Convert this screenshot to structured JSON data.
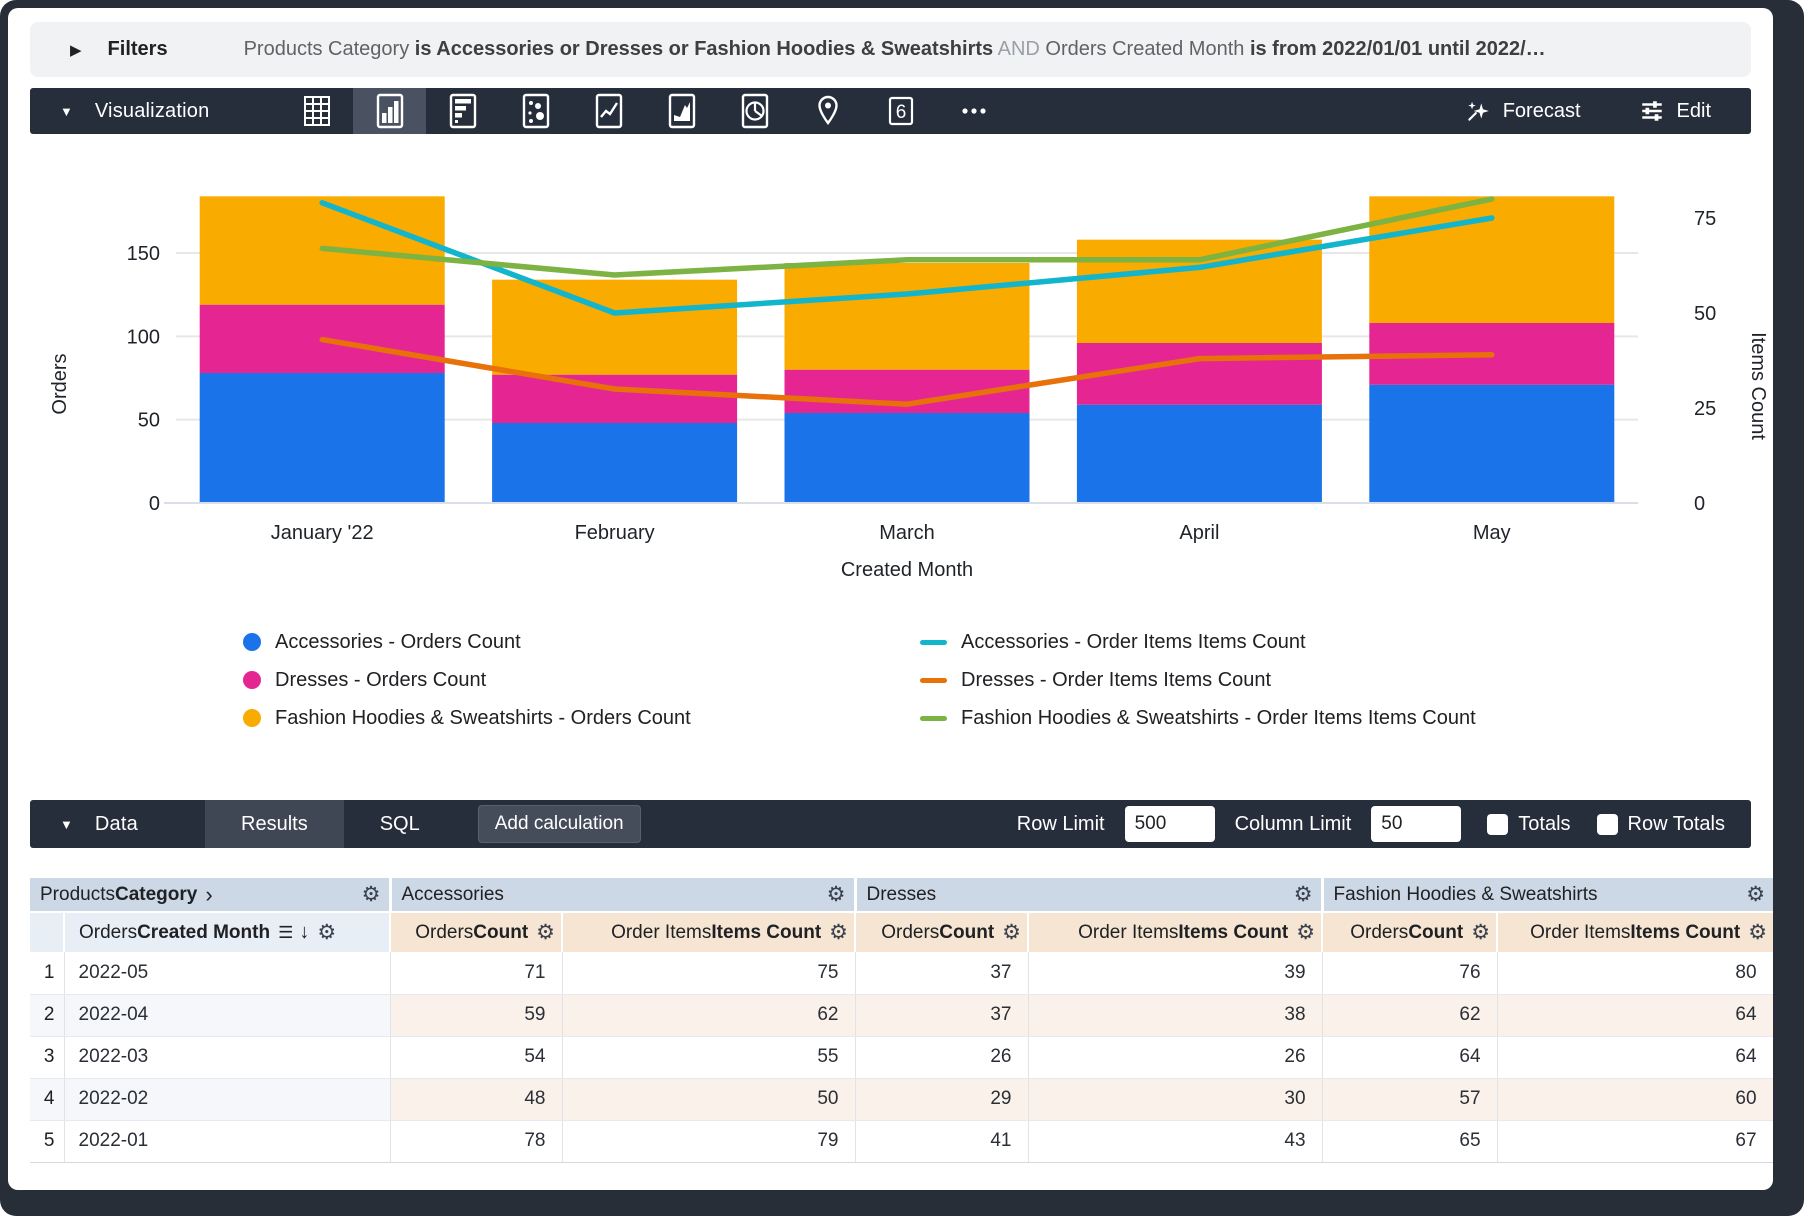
{
  "filters": {
    "label": "Filters",
    "expand_icon": "▶",
    "parts": [
      {
        "text": "Products Category ",
        "style": "normal"
      },
      {
        "text": "is Accessories or Dresses or Fashion Hoodies & Sweatshirts",
        "style": "bold"
      },
      {
        "text": " AND ",
        "style": "dim"
      },
      {
        "text": "Orders Created Month ",
        "style": "normal"
      },
      {
        "text": "is from 2022/01/01 until 2022/…",
        "style": "bold"
      }
    ]
  },
  "viz_toolbar": {
    "title": "Visualization",
    "tools": [
      {
        "id": "table",
        "selected": false
      },
      {
        "id": "column-chart",
        "selected": true
      },
      {
        "id": "bar-chart",
        "selected": false
      },
      {
        "id": "scatter",
        "selected": false
      },
      {
        "id": "line-chart",
        "selected": false
      },
      {
        "id": "area-chart",
        "selected": false
      },
      {
        "id": "pie-chart",
        "selected": false
      },
      {
        "id": "map-pin",
        "selected": false
      },
      {
        "id": "single-value",
        "selected": false
      },
      {
        "id": "more",
        "selected": false
      }
    ],
    "single_value_glyph": "6",
    "forecast_label": "Forecast",
    "edit_label": "Edit"
  },
  "chart_data": {
    "type": "combo: stacked bar + line, dual axis",
    "categories": [
      "January '22",
      "February",
      "March",
      "April",
      "May"
    ],
    "bar_series": [
      {
        "name": "Accessories - Orders Count",
        "color": "#1a73e8",
        "values": [
          78,
          48,
          54,
          59,
          71
        ]
      },
      {
        "name": "Dresses - Orders Count",
        "color": "#e52592",
        "values": [
          41,
          29,
          26,
          37,
          37
        ]
      },
      {
        "name": "Fashion Hoodies & Sweatshirts - Orders Count",
        "color": "#f9ab00",
        "values": [
          65,
          57,
          64,
          62,
          76
        ]
      }
    ],
    "line_series": [
      {
        "name": "Accessories - Order Items Items Count",
        "color": "#12b5cb",
        "values": [
          79,
          50,
          55,
          62,
          75
        ]
      },
      {
        "name": "Dresses - Order Items Items Count",
        "color": "#e8710a",
        "values": [
          43,
          30,
          26,
          38,
          39
        ]
      },
      {
        "name": "Fashion Hoodies & Sweatshirts - Order Items Items Count",
        "color": "#7cb342",
        "values": [
          67,
          60,
          64,
          64,
          80
        ]
      }
    ],
    "left_axis": {
      "title": "Orders",
      "ticks": [
        0,
        50,
        100,
        150
      ],
      "units_per_px": "150 units / 250 px"
    },
    "right_axis": {
      "title": "Items Count",
      "ticks": [
        0,
        25,
        50,
        75
      ],
      "units_per_px": "75 units / 285 px"
    },
    "xlabel": "Created Month",
    "grid": true,
    "legend_position": "bottom, two columns"
  },
  "data_panel": {
    "title": "Data",
    "tabs": [
      {
        "label": "Results",
        "active": true
      },
      {
        "label": "SQL",
        "active": false
      }
    ],
    "add_calculation_label": "Add calculation",
    "row_limit_label": "Row Limit",
    "row_limit_value": "500",
    "column_limit_label": "Column Limit",
    "column_limit_value": "50",
    "totals_label": "Totals",
    "totals_checked": false,
    "row_totals_label": "Row Totals",
    "row_totals_checked": false
  },
  "table": {
    "group_headers": [
      {
        "regular": "Products ",
        "bold": "Category",
        "chevron": "›",
        "has_gear": true
      },
      {
        "regular": "Accessories",
        "bold": "",
        "chevron": "",
        "has_gear": true
      },
      {
        "regular": "Dresses",
        "bold": "",
        "chevron": "",
        "has_gear": true
      },
      {
        "regular": "Fashion Hoodies & Sweatshirts",
        "bold": "",
        "chevron": "",
        "has_gear": true
      }
    ],
    "dimension_subheader": {
      "regular": "Orders ",
      "bold": "Created Month",
      "subtotal_icon": "☰",
      "sort_icon": "↓",
      "has_gear": true
    },
    "measure_subheaders": [
      {
        "regular": "Orders ",
        "bold": "Count"
      },
      {
        "regular": "Order Items ",
        "bold": "Items Count"
      }
    ],
    "rows": [
      {
        "num": "1",
        "month": "2022-05",
        "values": [
          "71",
          "75",
          "37",
          "39",
          "76",
          "80"
        ]
      },
      {
        "num": "2",
        "month": "2022-04",
        "values": [
          "59",
          "62",
          "37",
          "38",
          "62",
          "64"
        ]
      },
      {
        "num": "3",
        "month": "2022-03",
        "values": [
          "54",
          "55",
          "26",
          "26",
          "64",
          "64"
        ]
      },
      {
        "num": "4",
        "month": "2022-02",
        "values": [
          "48",
          "50",
          "29",
          "30",
          "57",
          "60"
        ]
      },
      {
        "num": "5",
        "month": "2022-01",
        "values": [
          "78",
          "79",
          "41",
          "43",
          "65",
          "67"
        ]
      }
    ]
  }
}
